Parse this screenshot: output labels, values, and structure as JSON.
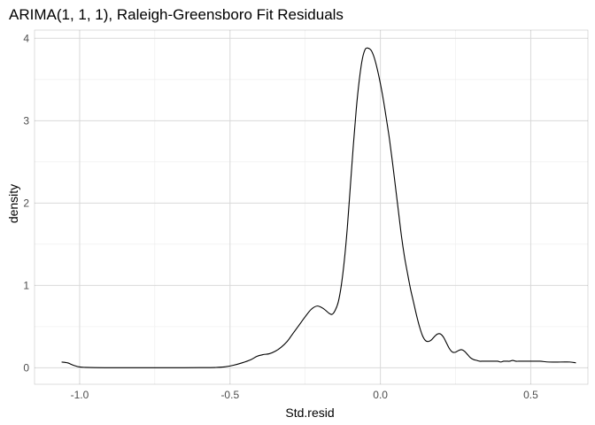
{
  "chart_data": {
    "type": "line",
    "title": "ARIMA(1, 1, 1), Raleigh-Greensboro Fit Residuals",
    "xlabel": "Std.resid",
    "ylabel": "density",
    "xlim": [
      -1.15,
      0.69
    ],
    "ylim": [
      -0.2,
      4.1
    ],
    "x_ticks": [
      -1.0,
      -0.5,
      0.0,
      0.5
    ],
    "x_tick_labels": [
      "-1.0",
      "-0.5",
      "0.0",
      "0.5"
    ],
    "y_ticks": [
      0,
      1,
      2,
      3,
      4
    ],
    "y_tick_labels": [
      "0",
      "1",
      "2",
      "3",
      "4"
    ],
    "grid": true,
    "legend": "none",
    "series": [
      {
        "x": [
          -1.06,
          -1.04,
          -1.02,
          -1.0,
          -0.98,
          -0.95,
          -0.9,
          -0.85,
          -0.8,
          -0.75,
          -0.7,
          -0.65,
          -0.6,
          -0.55,
          -0.52,
          -0.49,
          -0.46,
          -0.43,
          -0.41,
          -0.39,
          -0.37,
          -0.35,
          -0.33,
          -0.31,
          -0.29,
          -0.27,
          -0.25,
          -0.23,
          -0.21,
          -0.19,
          -0.17,
          -0.16,
          -0.15,
          -0.14,
          -0.13,
          -0.12,
          -0.11,
          -0.1,
          -0.09,
          -0.08,
          -0.07,
          -0.06,
          -0.05,
          -0.04,
          -0.03,
          -0.02,
          -0.01,
          0.0,
          0.01,
          0.02,
          0.03,
          0.04,
          0.05,
          0.06,
          0.07,
          0.08,
          0.09,
          0.1,
          0.11,
          0.12,
          0.13,
          0.14,
          0.15,
          0.16,
          0.17,
          0.18,
          0.19,
          0.2,
          0.21,
          0.22,
          0.23,
          0.24,
          0.25,
          0.26,
          0.27,
          0.28,
          0.29,
          0.3,
          0.31,
          0.32,
          0.33,
          0.34,
          0.35,
          0.36,
          0.37,
          0.38,
          0.39,
          0.4,
          0.41,
          0.42,
          0.43,
          0.44,
          0.45,
          0.46,
          0.48,
          0.5,
          0.53,
          0.56,
          0.6,
          0.63,
          0.65
        ],
        "y": [
          0.07,
          0.06,
          0.03,
          0.01,
          0.005,
          0.002,
          0.001,
          0.001,
          0.001,
          0.001,
          0.001,
          0.001,
          0.002,
          0.004,
          0.01,
          0.03,
          0.06,
          0.1,
          0.14,
          0.16,
          0.17,
          0.2,
          0.25,
          0.32,
          0.42,
          0.52,
          0.62,
          0.71,
          0.75,
          0.72,
          0.66,
          0.65,
          0.7,
          0.8,
          1.0,
          1.3,
          1.7,
          2.2,
          2.7,
          3.15,
          3.5,
          3.75,
          3.87,
          3.88,
          3.85,
          3.76,
          3.62,
          3.45,
          3.25,
          3.02,
          2.78,
          2.5,
          2.2,
          1.9,
          1.6,
          1.35,
          1.15,
          0.96,
          0.8,
          0.64,
          0.5,
          0.39,
          0.33,
          0.32,
          0.34,
          0.38,
          0.41,
          0.41,
          0.37,
          0.3,
          0.23,
          0.19,
          0.19,
          0.21,
          0.22,
          0.2,
          0.16,
          0.12,
          0.1,
          0.09,
          0.08,
          0.08,
          0.08,
          0.08,
          0.08,
          0.08,
          0.08,
          0.07,
          0.08,
          0.08,
          0.08,
          0.09,
          0.08,
          0.08,
          0.08,
          0.08,
          0.08,
          0.07,
          0.07,
          0.07,
          0.06
        ]
      }
    ]
  }
}
